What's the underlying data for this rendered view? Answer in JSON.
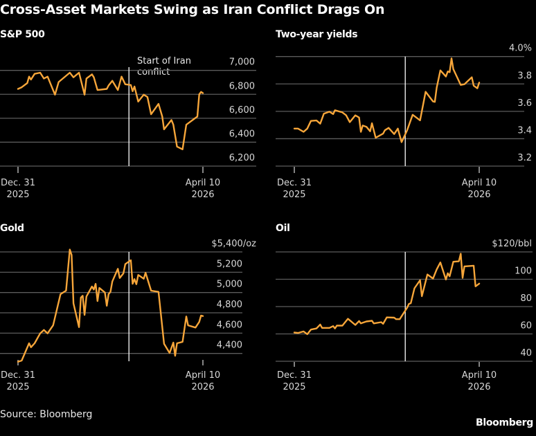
{
  "title": "Cross-Asset Markets Swing as Iran Conflict Drags On",
  "source": "Source: Bloomberg",
  "brand": "Bloomberg",
  "colors": {
    "line": "#f7a63a",
    "grid": "#5c5c5c",
    "event_line": "#ffffff",
    "background": "#000000"
  },
  "chart_data": [
    {
      "type": "line",
      "title": "S&P 500",
      "xlim": [
        "2025-12-31",
        "2026-04-10"
      ],
      "x_tick_labels": [
        [
          "Dec. 31",
          "2025"
        ],
        [
          "April 10",
          "2026"
        ]
      ],
      "x_ticks": [
        "2025-12-31",
        "2026-04-10"
      ],
      "ylim": [
        6200,
        7000
      ],
      "yticks": [
        7000,
        6800,
        6600,
        6400,
        6200
      ],
      "ytick_labels": [
        "7,000",
        "6,800",
        "6,600",
        "6,400",
        "6,200"
      ],
      "grid": true,
      "event_date": "2026-03-01",
      "annotation": "Start of Iran conflict",
      "series": [
        {
          "values": [
            [
              "2025-12-31",
              6845
            ],
            [
              "2026-01-02",
              6859
            ],
            [
              "2026-01-05",
              6894
            ],
            [
              "2026-01-06",
              6948
            ],
            [
              "2026-01-07",
              6923
            ],
            [
              "2026-01-09",
              6971
            ],
            [
              "2026-01-12",
              6981
            ],
            [
              "2026-01-14",
              6932
            ],
            [
              "2026-01-16",
              6948
            ],
            [
              "2026-01-20",
              6797
            ],
            [
              "2026-01-22",
              6903
            ],
            [
              "2026-01-28",
              6981
            ],
            [
              "2026-01-30",
              6942
            ],
            [
              "2026-02-02",
              6981
            ],
            [
              "2026-02-05",
              6797
            ],
            [
              "2026-02-06",
              6932
            ],
            [
              "2026-02-09",
              6967
            ],
            [
              "2026-02-10",
              6942
            ],
            [
              "2026-02-12",
              6836
            ],
            [
              "2026-02-17",
              6845
            ],
            [
              "2026-02-18",
              6874
            ],
            [
              "2026-02-20",
              6913
            ],
            [
              "2026-02-23",
              6836
            ],
            [
              "2026-02-25",
              6948
            ],
            [
              "2026-02-27",
              6884
            ],
            [
              "2026-03-02",
              6878
            ],
            [
              "2026-03-03",
              6826
            ],
            [
              "2026-03-04",
              6865
            ],
            [
              "2026-03-06",
              6739
            ],
            [
              "2026-03-09",
              6797
            ],
            [
              "2026-03-11",
              6778
            ],
            [
              "2026-03-13",
              6633
            ],
            [
              "2026-03-17",
              6720
            ],
            [
              "2026-03-19",
              6614
            ],
            [
              "2026-03-20",
              6507
            ],
            [
              "2026-03-24",
              6585
            ],
            [
              "2026-03-25",
              6546
            ],
            [
              "2026-03-27",
              6363
            ],
            [
              "2026-03-30",
              6340
            ],
            [
              "2026-04-01",
              6546
            ],
            [
              "2026-04-07",
              6614
            ],
            [
              "2026-04-08",
              6800
            ],
            [
              "2026-04-09",
              6820
            ],
            [
              "2026-04-10",
              6810
            ]
          ]
        }
      ]
    },
    {
      "type": "line",
      "title": "Two-year yields",
      "xlim": [
        "2025-12-31",
        "2026-04-10"
      ],
      "x_tick_labels": [
        [
          "Dec. 31",
          "2025"
        ],
        [
          "April 10",
          "2026"
        ]
      ],
      "x_ticks": [
        "2025-12-31",
        "2026-04-10"
      ],
      "ylim": [
        3.2,
        4.0
      ],
      "yticks": [
        4.0,
        3.8,
        3.6,
        3.4,
        3.2
      ],
      "ytick_labels": [
        "4.0%",
        "3.8",
        "3.6",
        "3.4",
        "3.2"
      ],
      "grid": true,
      "event_date": "2026-03-01",
      "series": [
        {
          "values": [
            [
              "2025-12-31",
              3.474
            ],
            [
              "2026-01-02",
              3.474
            ],
            [
              "2026-01-05",
              3.45
            ],
            [
              "2026-01-07",
              3.474
            ],
            [
              "2026-01-09",
              3.53
            ],
            [
              "2026-01-12",
              3.533
            ],
            [
              "2026-01-14",
              3.51
            ],
            [
              "2026-01-16",
              3.583
            ],
            [
              "2026-01-19",
              3.597
            ],
            [
              "2026-01-21",
              3.58
            ],
            [
              "2026-01-22",
              3.608
            ],
            [
              "2026-01-26",
              3.592
            ],
            [
              "2026-01-28",
              3.571
            ],
            [
              "2026-01-30",
              3.521
            ],
            [
              "2026-02-02",
              3.571
            ],
            [
              "2026-02-04",
              3.555
            ],
            [
              "2026-02-05",
              3.45
            ],
            [
              "2026-02-06",
              3.496
            ],
            [
              "2026-02-08",
              3.487
            ],
            [
              "2026-02-10",
              3.454
            ],
            [
              "2026-02-11",
              3.513
            ],
            [
              "2026-02-13",
              3.407
            ],
            [
              "2026-02-17",
              3.437
            ],
            [
              "2026-02-18",
              3.462
            ],
            [
              "2026-02-20",
              3.479
            ],
            [
              "2026-02-23",
              3.434
            ],
            [
              "2026-02-25",
              3.474
            ],
            [
              "2026-02-27",
              3.375
            ],
            [
              "2026-03-02",
              3.462
            ],
            [
              "2026-03-05",
              3.575
            ],
            [
              "2026-03-09",
              3.534
            ],
            [
              "2026-03-12",
              3.743
            ],
            [
              "2026-03-16",
              3.672
            ],
            [
              "2026-03-17",
              3.669
            ],
            [
              "2026-03-18",
              3.773
            ],
            [
              "2026-03-20",
              3.899
            ],
            [
              "2026-03-23",
              3.854
            ],
            [
              "2026-03-24",
              3.891
            ],
            [
              "2026-03-25",
              3.886
            ],
            [
              "2026-03-26",
              3.987
            ],
            [
              "2026-03-27",
              3.908
            ],
            [
              "2026-03-31",
              3.793
            ],
            [
              "2026-04-02",
              3.798
            ],
            [
              "2026-04-06",
              3.849
            ],
            [
              "2026-04-07",
              3.787
            ],
            [
              "2026-04-09",
              3.768
            ],
            [
              "2026-04-10",
              3.81
            ]
          ]
        }
      ]
    },
    {
      "type": "line",
      "title": "Gold",
      "xlim": [
        "2025-12-31",
        "2026-04-10"
      ],
      "x_tick_labels": [
        [
          "Dec. 31",
          "2025"
        ],
        [
          "April 10",
          "2026"
        ]
      ],
      "x_ticks": [
        "2025-12-31",
        "2026-04-10"
      ],
      "ylim": [
        4400,
        5400
      ],
      "yticks": [
        5400,
        5200,
        5000,
        4800,
        4600,
        4400
      ],
      "ytick_labels": [
        "$5,400/oz",
        "5,200",
        "5,000",
        "4,800",
        "4,600",
        "4,400"
      ],
      "grid": true,
      "event_date": "2026-03-01",
      "series": [
        {
          "values": [
            [
              "2025-12-31",
              4318
            ],
            [
              "2026-01-02",
              4330
            ],
            [
              "2026-01-04",
              4416
            ],
            [
              "2026-01-06",
              4500
            ],
            [
              "2026-01-07",
              4461
            ],
            [
              "2026-01-09",
              4500
            ],
            [
              "2026-01-12",
              4598
            ],
            [
              "2026-01-14",
              4632
            ],
            [
              "2026-01-16",
              4598
            ],
            [
              "2026-01-19",
              4677
            ],
            [
              "2026-01-23",
              4984
            ],
            [
              "2026-01-26",
              5018
            ],
            [
              "2026-01-28",
              5423
            ],
            [
              "2026-01-29",
              5370
            ],
            [
              "2026-01-30",
              4893
            ],
            [
              "2026-02-02",
              4659
            ],
            [
              "2026-02-03",
              4950
            ],
            [
              "2026-02-04",
              4968
            ],
            [
              "2026-02-05",
              4780
            ],
            [
              "2026-02-06",
              4961
            ],
            [
              "2026-02-09",
              5059
            ],
            [
              "2026-02-10",
              5030
            ],
            [
              "2026-02-11",
              5086
            ],
            [
              "2026-02-12",
              4916
            ],
            [
              "2026-02-13",
              5045
            ],
            [
              "2026-02-16",
              5000
            ],
            [
              "2026-02-17",
              4870
            ],
            [
              "2026-02-18",
              4984
            ],
            [
              "2026-02-19",
              5007
            ],
            [
              "2026-02-20",
              5109
            ],
            [
              "2026-02-23",
              5234
            ],
            [
              "2026-02-24",
              5143
            ],
            [
              "2026-02-26",
              5189
            ],
            [
              "2026-02-27",
              5280
            ],
            [
              "2026-03-02",
              5318
            ],
            [
              "2026-03-03",
              5086
            ],
            [
              "2026-03-04",
              5132
            ],
            [
              "2026-03-05",
              5082
            ],
            [
              "2026-03-06",
              5173
            ],
            [
              "2026-03-09",
              5136
            ],
            [
              "2026-03-10",
              5195
            ],
            [
              "2026-03-13",
              5018
            ],
            [
              "2026-03-17",
              5007
            ],
            [
              "2026-03-20",
              4495
            ],
            [
              "2026-03-23",
              4405
            ],
            [
              "2026-03-25",
              4507
            ],
            [
              "2026-03-26",
              4377
            ],
            [
              "2026-03-27",
              4500
            ],
            [
              "2026-03-30",
              4514
            ],
            [
              "2026-04-01",
              4764
            ],
            [
              "2026-04-02",
              4677
            ],
            [
              "2026-04-06",
              4655
            ],
            [
              "2026-04-08",
              4711
            ],
            [
              "2026-04-09",
              4773
            ],
            [
              "2026-04-10",
              4768
            ]
          ]
        }
      ]
    },
    {
      "type": "line",
      "title": "Oil",
      "xlim": [
        "2025-12-31",
        "2026-04-10"
      ],
      "x_tick_labels": [
        [
          "Dec. 31",
          "2025"
        ],
        [
          "April 10",
          "2026"
        ]
      ],
      "x_ticks": [
        "2025-12-31",
        "2026-04-10"
      ],
      "ylim": [
        40,
        120
      ],
      "yticks": [
        120,
        100,
        80,
        60,
        40
      ],
      "ytick_labels": [
        "$120/bbl",
        "100",
        "80",
        "60",
        "40"
      ],
      "grid": true,
      "event_date": "2026-03-01",
      "series": [
        {
          "values": [
            [
              "2025-12-31",
              61.0
            ],
            [
              "2026-01-02",
              60.7
            ],
            [
              "2026-01-05",
              61.8
            ],
            [
              "2026-01-07",
              59.8
            ],
            [
              "2026-01-09",
              63.2
            ],
            [
              "2026-01-12",
              64.0
            ],
            [
              "2026-01-14",
              66.9
            ],
            [
              "2026-01-15",
              64.4
            ],
            [
              "2026-01-19",
              64.4
            ],
            [
              "2026-01-21",
              65.7
            ],
            [
              "2026-01-22",
              64.0
            ],
            [
              "2026-01-23",
              66.1
            ],
            [
              "2026-01-26",
              66.1
            ],
            [
              "2026-01-29",
              71.1
            ],
            [
              "2026-02-02",
              66.6
            ],
            [
              "2026-02-04",
              69.4
            ],
            [
              "2026-02-05",
              67.7
            ],
            [
              "2026-02-08",
              69.1
            ],
            [
              "2026-02-11",
              69.6
            ],
            [
              "2026-02-12",
              67.7
            ],
            [
              "2026-02-16",
              68.6
            ],
            [
              "2026-02-17",
              67.4
            ],
            [
              "2026-02-19",
              72.1
            ],
            [
              "2026-02-23",
              71.9
            ],
            [
              "2026-02-24",
              70.8
            ],
            [
              "2026-02-26",
              70.8
            ],
            [
              "2026-03-02",
              79.2
            ],
            [
              "2026-03-03",
              82.0
            ],
            [
              "2026-03-04",
              82.5
            ],
            [
              "2026-03-06",
              93.4
            ],
            [
              "2026-03-09",
              99.3
            ],
            [
              "2026-03-10",
              87.6
            ],
            [
              "2026-03-13",
              103.5
            ],
            [
              "2026-03-16",
              100.5
            ],
            [
              "2026-03-18",
              107.2
            ],
            [
              "2026-03-20",
              112.3
            ],
            [
              "2026-03-23",
              99.8
            ],
            [
              "2026-03-24",
              104.4
            ],
            [
              "2026-03-25",
              102.2
            ],
            [
              "2026-03-27",
              112.8
            ],
            [
              "2026-03-30",
              113.1
            ],
            [
              "2026-03-31",
              118.7
            ],
            [
              "2026-04-01",
              101.0
            ],
            [
              "2026-04-02",
              109.4
            ],
            [
              "2026-04-07",
              109.9
            ],
            [
              "2026-04-08",
              94.8
            ],
            [
              "2026-04-10",
              96.8
            ]
          ]
        }
      ]
    }
  ]
}
